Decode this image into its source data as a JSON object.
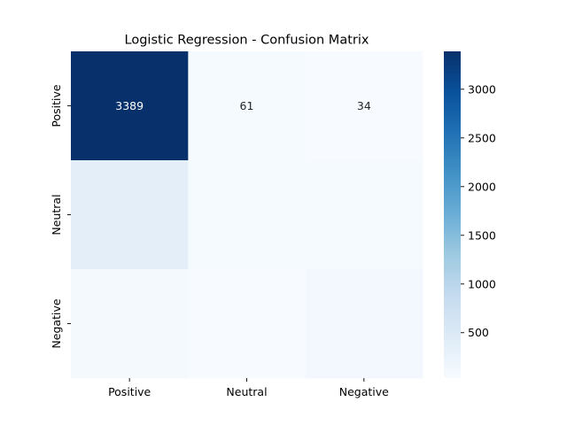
{
  "chart_data": {
    "type": "heatmap",
    "title": "Logistic Regression - Confusion Matrix",
    "xlabel": "",
    "ylabel": "",
    "x_categories": [
      "Positive",
      "Neutral",
      "Negative"
    ],
    "y_categories": [
      "Positive",
      "Neutral",
      "Negative"
    ],
    "values": [
      [
        3389,
        61,
        34
      ],
      [
        370,
        60,
        60
      ],
      [
        90,
        40,
        120
      ]
    ],
    "annotations": [
      [
        "3389",
        "61",
        "34"
      ],
      [
        "",
        "",
        ""
      ],
      [
        "",
        "",
        ""
      ]
    ],
    "colormap": "Blues",
    "colorbar": {
      "range": [
        34,
        3389
      ],
      "ticks": [
        500,
        1000,
        1500,
        2000,
        2500,
        3000
      ],
      "tick_labels": [
        "500",
        "1000",
        "1500",
        "2000",
        "2500",
        "3000"
      ]
    },
    "colors": {
      "low": "#f7fbff",
      "high": "#08306b"
    },
    "grid": false,
    "legend": "colorbar-right"
  }
}
